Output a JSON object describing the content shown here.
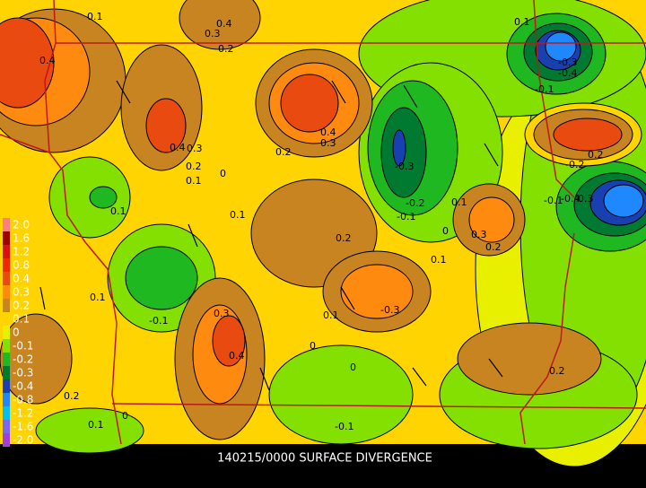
{
  "title": "140215/0000 SURFACE DIVERGENCE",
  "legend": [
    {
      "label": "2.0",
      "color": "#ff7f7f"
    },
    {
      "label": "1.6",
      "color": "#a00000"
    },
    {
      "label": "1.2",
      "color": "#d81010"
    },
    {
      "label": "0.8",
      "color": "#f02800"
    },
    {
      "label": "0.4",
      "color": "#e84a10"
    },
    {
      "label": "0.3",
      "color": "#ff8a10"
    },
    {
      "label": "0.2",
      "color": "#c88420"
    },
    {
      "label": "0.1",
      "color": "#ffd400"
    },
    {
      "label": "0",
      "color": "#e8f000"
    },
    {
      "label": "-0.1",
      "color": "#84e000"
    },
    {
      "label": "-0.2",
      "color": "#20b820"
    },
    {
      "label": "-0.3",
      "color": "#007a30"
    },
    {
      "label": "-0.4",
      "color": "#1840b0"
    },
    {
      "label": "-0.8",
      "color": "#2088ff"
    },
    {
      "label": "-1.2",
      "color": "#00c0f0"
    },
    {
      "label": "-1.6",
      "color": "#7868f0"
    },
    {
      "label": "-2.0",
      "color": "#a040d8"
    }
  ],
  "contour_labels": [
    "0.1",
    "0.4",
    "0.3",
    "0.2",
    "0.4",
    "0.4",
    "0.3",
    "0.2",
    "0.1",
    "0",
    "-0.3",
    "-0.4",
    "0.4",
    "0.3",
    "0.2",
    "-0.3",
    "-0.2",
    "-0.1",
    "0.1",
    "0",
    "-0.1",
    "0.3",
    "0.2",
    "0.1",
    "0.2",
    "0.1",
    "0.1",
    "-0.3",
    "0.1",
    "0",
    "0.1",
    "-0.1",
    "0.3",
    "0.4",
    "0",
    "0.2",
    "0.2",
    "0.1",
    "0",
    "-0.1",
    "0.1",
    "-0.4",
    "-0.3",
    "-0.2",
    "-0.1",
    "0.2"
  ]
}
